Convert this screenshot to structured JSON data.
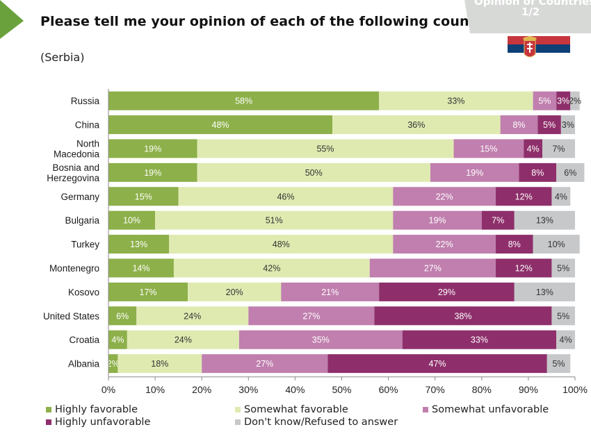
{
  "header": {
    "title": "Please tell me your opinion of each of the following countries.",
    "subtitle": "(Serbia)",
    "corner_line1": "Opinion of Countries",
    "corner_line2": "1/2"
  },
  "colors": {
    "arrow": "#6aa13c",
    "flag_red": "#c6363c",
    "flag_blue": "#0c4077",
    "flag_white": "#ffffff"
  },
  "chart_data": {
    "type": "bar",
    "orientation": "horizontal",
    "stacked": true,
    "title": "Please tell me your opinion of each of the following countries.",
    "subtitle": "(Serbia)",
    "xlim": [
      0,
      100
    ],
    "xticks": [
      "0%",
      "10%",
      "20%",
      "30%",
      "40%",
      "50%",
      "60%",
      "70%",
      "80%",
      "90%",
      "100%"
    ],
    "categories": [
      [
        "Russia"
      ],
      [
        "China"
      ],
      [
        "North",
        "Macedonia"
      ],
      [
        "Bosnia and",
        "Herzegovina"
      ],
      [
        "Germany"
      ],
      [
        "Bulgaria"
      ],
      [
        "Turkey"
      ],
      [
        "Montenegro"
      ],
      [
        "Kosovo"
      ],
      [
        "United States"
      ],
      [
        "Croatia"
      ],
      [
        "Albania"
      ]
    ],
    "series": [
      {
        "name": "Highly favorable",
        "color": "#8db04a",
        "label_color": "#ffffff",
        "values": [
          58,
          48,
          19,
          19,
          15,
          10,
          13,
          14,
          17,
          6,
          4,
          2
        ],
        "labels": [
          "58%",
          "48%",
          "19%",
          "19%",
          "15%",
          "10%",
          "13%",
          "14%",
          "17%",
          "6%",
          "4%",
          "2%"
        ]
      },
      {
        "name": "Somewhat favorable",
        "color": "#dfeab1",
        "label_color": "#333333",
        "values": [
          33,
          36,
          55,
          50,
          46,
          51,
          48,
          42,
          20,
          24,
          24,
          18
        ],
        "labels": [
          "33%",
          "36%",
          "55%",
          "50%",
          "46%",
          "51%",
          "48%",
          "42%",
          "20%",
          "24%",
          "24%",
          "18%"
        ]
      },
      {
        "name": "Somewhat unfavorable",
        "color": "#c07fae",
        "label_color": "#ffffff",
        "values": [
          5,
          8,
          15,
          19,
          22,
          19,
          22,
          27,
          21,
          27,
          35,
          27
        ],
        "labels": [
          "5%",
          "8%",
          "15%",
          "19%",
          "22%",
          "19%",
          "22%",
          "27%",
          "21%",
          "27%",
          "35%",
          "27%"
        ]
      },
      {
        "name": "Highly unfavorable",
        "color": "#8e2f6b",
        "label_color": "#ffffff",
        "values": [
          3,
          5,
          4,
          8,
          12,
          7,
          8,
          12,
          29,
          38,
          33,
          47
        ],
        "labels": [
          "3%",
          "5%",
          "4%",
          "8%",
          "12%",
          "7%",
          "8%",
          "12%",
          "29%",
          "38%",
          "33%",
          "47%"
        ]
      },
      {
        "name": "Don't know/Refused to answer",
        "color": "#c7c8ca",
        "label_color": "#333333",
        "values": [
          2,
          3,
          7,
          6,
          4,
          13,
          10,
          5,
          13,
          5,
          4,
          5
        ],
        "labels": [
          "2%",
          "3%",
          "7%",
          "6%",
          "4%",
          "13%",
          "10%",
          "5%",
          "13%",
          "5%",
          "4%",
          "5%"
        ]
      }
    ],
    "grid": false,
    "legend": "bottom"
  }
}
